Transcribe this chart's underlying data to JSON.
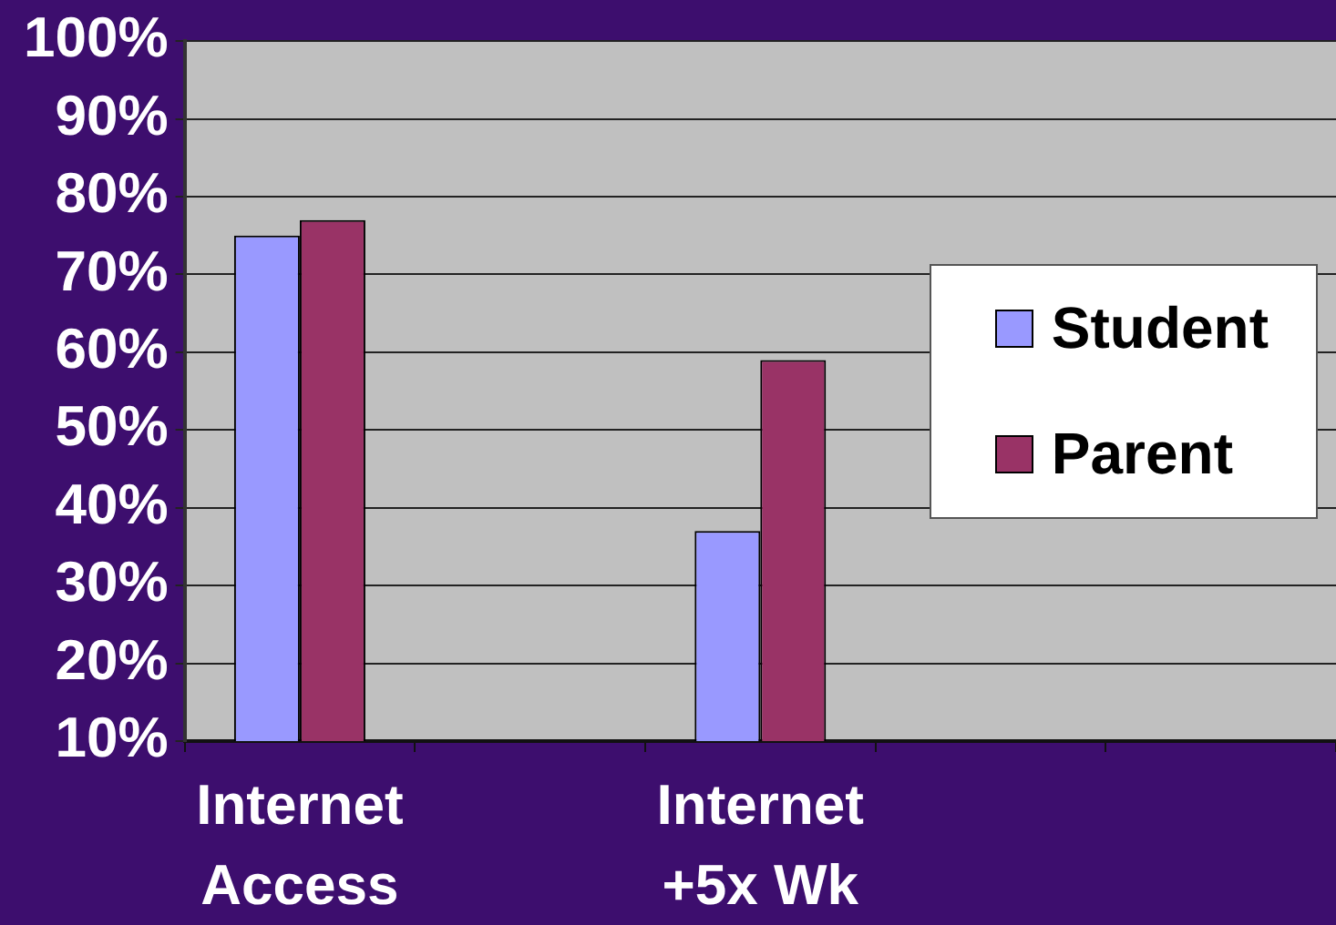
{
  "chart_data": {
    "type": "bar",
    "categories": [
      "Internet Access",
      null,
      "Internet +5x Wk",
      null,
      null
    ],
    "series": [
      {
        "name": "Student",
        "color": "#9999ff",
        "values": [
          75,
          null,
          37,
          null,
          null
        ]
      },
      {
        "name": "Parent",
        "color": "#993366",
        "values": [
          77,
          null,
          59,
          null,
          null
        ]
      }
    ],
    "ylim": [
      10,
      100
    ],
    "yticks": [
      {
        "value": 10,
        "label": "10%"
      },
      {
        "value": 20,
        "label": "20%"
      },
      {
        "value": 30,
        "label": "30%"
      },
      {
        "value": 40,
        "label": "40%"
      },
      {
        "value": 50,
        "label": "50%"
      },
      {
        "value": 60,
        "label": "60%"
      },
      {
        "value": 70,
        "label": "70%"
      },
      {
        "value": 80,
        "label": "80%"
      },
      {
        "value": 90,
        "label": "90%"
      },
      {
        "value": 100,
        "label": "100%"
      }
    ],
    "grid": "y",
    "legend": "right"
  }
}
